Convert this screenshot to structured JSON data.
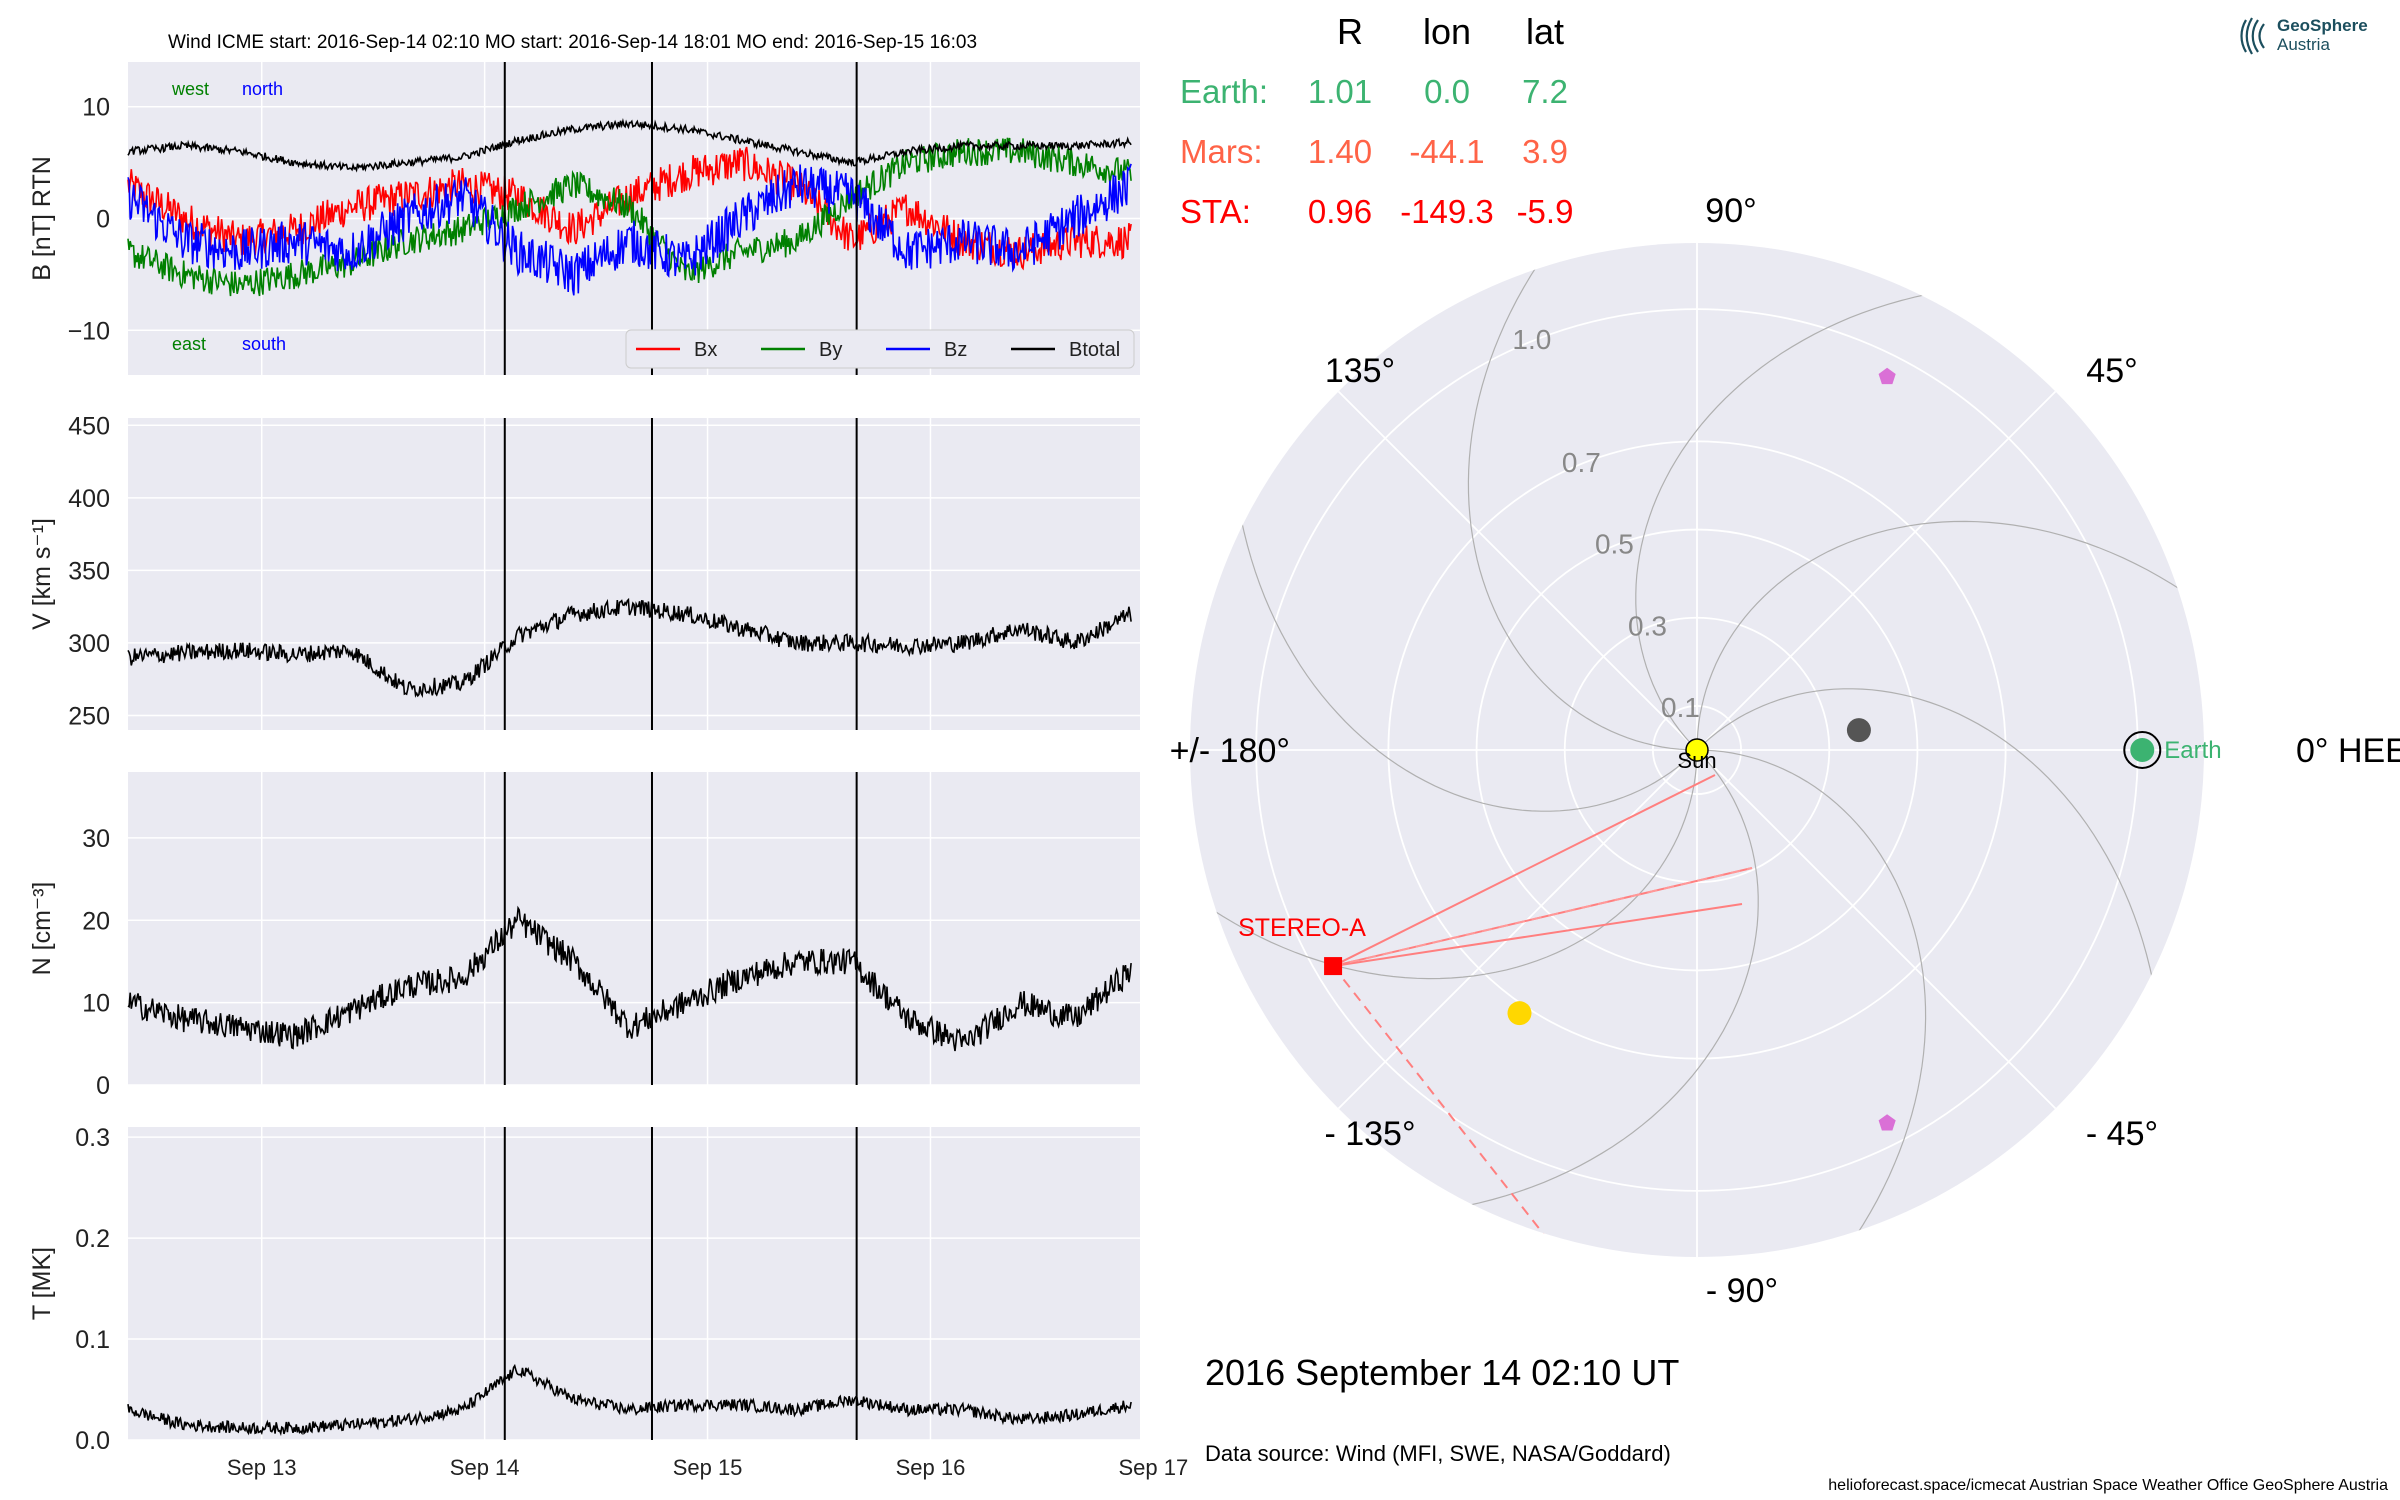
{
  "header": {
    "title": "Wind    ICME start: 2016-Sep-14 02:10   MO start: 2016-Sep-14 18:01   MO end: 2016-Sep-15 16:03"
  },
  "colors": {
    "background_panel": "#eaeaf2",
    "grid": "#ffffff",
    "bx": "#ff0000",
    "by": "#008000",
    "bz": "#0000ff",
    "btotal": "#000000",
    "earth": "#3cb371",
    "mars": "#ff6347",
    "sta": "#ff0000",
    "sun": "#ffff00",
    "venus": "#ffd700",
    "mercury": "#555555",
    "solo_psp": "#da70d6"
  },
  "chart_data": [
    {
      "type": "line",
      "panel": "magnetic-field",
      "ylabel": "B [nT] RTN",
      "ylim": [
        -14,
        14
      ],
      "yticks": [
        "10",
        "0",
        "−10"
      ],
      "annotations": {
        "west": "west",
        "north": "north",
        "east": "east",
        "south": "south"
      },
      "legend": {
        "position": "lower-right",
        "entries": [
          "Bx",
          "By",
          "Bz",
          "Btotal"
        ]
      },
      "x_days": [
        0.0,
        0.25,
        0.5,
        0.75,
        1.0,
        1.25,
        1.5,
        1.75,
        2.0,
        2.25,
        2.5,
        2.75,
        3.0,
        3.25,
        3.5,
        3.75,
        4.0,
        4.25,
        4.5
      ],
      "series": [
        {
          "name": "Bx",
          "values": [
            3,
            0,
            -2,
            -1,
            1,
            2,
            3,
            2,
            -1,
            2,
            4,
            5,
            3,
            -2,
            1,
            -2,
            -3,
            -2,
            -2
          ]
        },
        {
          "name": "By",
          "values": [
            -3,
            -5,
            -6,
            -5,
            -4,
            -2,
            -1,
            1,
            3,
            1,
            -5,
            -3,
            -2,
            2,
            5,
            6,
            6,
            5,
            4
          ]
        },
        {
          "name": "Bz",
          "values": [
            2,
            -2,
            -3,
            -2,
            -3,
            0,
            2,
            -3,
            -5,
            -2,
            -4,
            0,
            3,
            2,
            -3,
            -2,
            -3,
            0,
            3
          ]
        },
        {
          "name": "Btotal",
          "values": [
            6,
            6.5,
            6,
            5,
            4.5,
            5,
            5.5,
            7,
            8,
            8.5,
            8,
            7,
            6,
            5,
            6,
            6.5,
            6.5,
            6.5,
            6.8
          ]
        }
      ],
      "event_lines": [
        "ICME start",
        "MO start",
        "MO end"
      ]
    },
    {
      "type": "line",
      "panel": "speed",
      "ylabel": "V [km s⁻¹]",
      "ylim": [
        240,
        455
      ],
      "yticks": [
        "450",
        "400",
        "350",
        "300",
        "250"
      ],
      "x_days": [
        0.0,
        0.25,
        0.5,
        0.75,
        1.0,
        1.25,
        1.5,
        1.75,
        2.0,
        2.25,
        2.5,
        2.75,
        3.0,
        3.25,
        3.5,
        3.75,
        4.0,
        4.25,
        4.5
      ],
      "series": [
        {
          "name": "V",
          "values": [
            290,
            293,
            295,
            292,
            295,
            268,
            272,
            305,
            320,
            325,
            320,
            310,
            300,
            300,
            298,
            300,
            310,
            300,
            320
          ]
        }
      ]
    },
    {
      "type": "line",
      "panel": "density",
      "ylabel": "N [cm⁻³]",
      "ylim": [
        0,
        38
      ],
      "yticks": [
        "30",
        "20",
        "10",
        "0"
      ],
      "x_days": [
        0.0,
        0.25,
        0.5,
        0.75,
        1.0,
        1.25,
        1.5,
        1.75,
        2.0,
        2.25,
        2.5,
        2.75,
        3.0,
        3.25,
        3.5,
        3.75,
        4.0,
        4.25,
        4.5
      ],
      "series": [
        {
          "name": "N",
          "values": [
            10,
            8,
            7,
            6,
            9,
            12,
            13,
            20,
            15,
            7,
            10,
            13,
            15,
            15,
            8,
            5,
            10,
            8,
            14
          ]
        }
      ]
    },
    {
      "type": "line",
      "panel": "temperature",
      "ylabel": "T [MK]",
      "ylim": [
        0,
        0.31
      ],
      "yticks": [
        "0.3",
        "0.2",
        "0.1",
        "0.0"
      ],
      "xticks": [
        "Sep 13",
        "Sep 14",
        "Sep 15",
        "Sep 16",
        "Sep 17"
      ],
      "x_days": [
        0.0,
        0.25,
        0.5,
        0.75,
        1.0,
        1.25,
        1.5,
        1.75,
        2.0,
        2.25,
        2.5,
        2.75,
        3.0,
        3.25,
        3.5,
        3.75,
        4.0,
        4.25,
        4.5
      ],
      "series": [
        {
          "name": "T",
          "values": [
            0.03,
            0.015,
            0.012,
            0.012,
            0.015,
            0.02,
            0.03,
            0.07,
            0.04,
            0.03,
            0.035,
            0.035,
            0.03,
            0.04,
            0.03,
            0.03,
            0.02,
            0.025,
            0.035
          ]
        }
      ]
    },
    {
      "type": "scatter",
      "panel": "polar-orbit-plot",
      "radial_labels": [
        "0.1",
        "0.3",
        "0.5",
        "0.7",
        "1.0"
      ],
      "angle_labels": {
        "a0": "0° HEEQ",
        "a45": "45°",
        "a90": "90°",
        "a135": "135°",
        "a180": "+/- 180°",
        "am135": "- 135°",
        "am90": "- 90°",
        "am45": "- 45°"
      },
      "bodies": [
        {
          "name": "Sun",
          "r": 0.0,
          "lon": 0
        },
        {
          "name": "Earth",
          "r": 1.01,
          "lon": 0.0
        },
        {
          "name": "STEREO-A",
          "r": 0.96,
          "lon": -149.3
        },
        {
          "name": "Mercury",
          "r": 0.37,
          "lon": 7
        },
        {
          "name": "Venus",
          "r": 0.72,
          "lon": -124
        },
        {
          "name": "Body 1",
          "r": 0.95,
          "lon": 63
        },
        {
          "name": "Body 2",
          "r": 0.95,
          "lon": -63
        }
      ],
      "table": {
        "headers": [
          "R",
          "lon",
          "lat"
        ],
        "rows": [
          {
            "label": "Earth:",
            "R": "1.01",
            "lon": "0.0",
            "lat": "7.2"
          },
          {
            "label": "Mars:",
            "R": "1.40",
            "lon": "-44.1",
            "lat": "3.9"
          },
          {
            "label": "STA:",
            "R": "0.96",
            "lon": "-149.3",
            "lat": "-5.9"
          }
        ]
      },
      "labels": {
        "sun": "Sun",
        "earth": "Earth",
        "stereo_a": "STEREO-A"
      }
    }
  ],
  "footer": {
    "datetime": "2016 September 14  02:10 UT",
    "source": "Data source: Wind (MFI, SWE, NASA/Goddard)",
    "credits": "helioforecast.space/icmecat   Austrian Space Weather Office   GeoSphere Austria"
  },
  "logo": {
    "name": "GeoSphere",
    "sub": "Austria"
  }
}
